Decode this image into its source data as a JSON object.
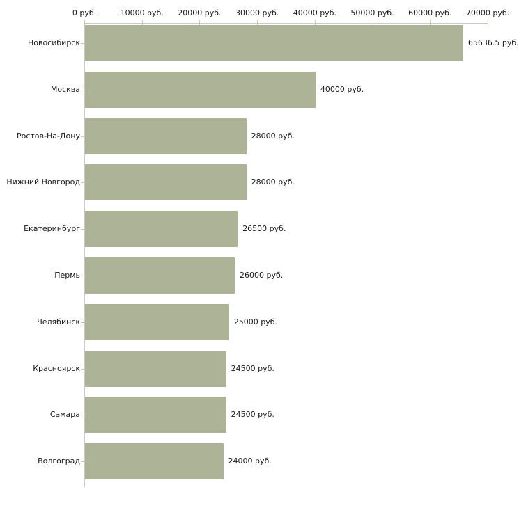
{
  "chart_data": {
    "type": "bar",
    "orientation": "horizontal",
    "title": "",
    "xlabel": "",
    "ylabel": "",
    "grid": false,
    "legend": null,
    "categories": [
      "Новосибирск",
      "Москва",
      "Ростов-На-Дону",
      "Нижний Новгород",
      "Екатеринбург",
      "Пермь",
      "Челябинск",
      "Красноярск",
      "Самара",
      "Волгоград"
    ],
    "values": [
      65636.5,
      40000,
      28000,
      28000,
      26500,
      26000,
      25000,
      24500,
      24500,
      24000
    ],
    "value_labels": [
      "65636.5 руб.",
      "40000 руб.",
      "28000 руб.",
      "28000 руб.",
      "26500 руб.",
      "26000 руб.",
      "25000 руб.",
      "24500 руб.",
      "24500 руб.",
      "24000 руб."
    ],
    "x_ticks": [
      0,
      10000,
      20000,
      30000,
      40000,
      50000,
      60000,
      70000
    ],
    "x_tick_labels": [
      "0 руб.",
      "10000 руб.",
      "20000 руб.",
      "30000 руб.",
      "40000 руб.",
      "50000 руб.",
      "60000 руб.",
      "70000 руб."
    ],
    "xlim": [
      0,
      70000
    ],
    "unit": "руб.",
    "colors": {
      "bar": "#acb397",
      "axis": "#c8c8c8",
      "tick": "#cccc99",
      "text": "#1a1a1a",
      "background": "#ffffff"
    }
  }
}
